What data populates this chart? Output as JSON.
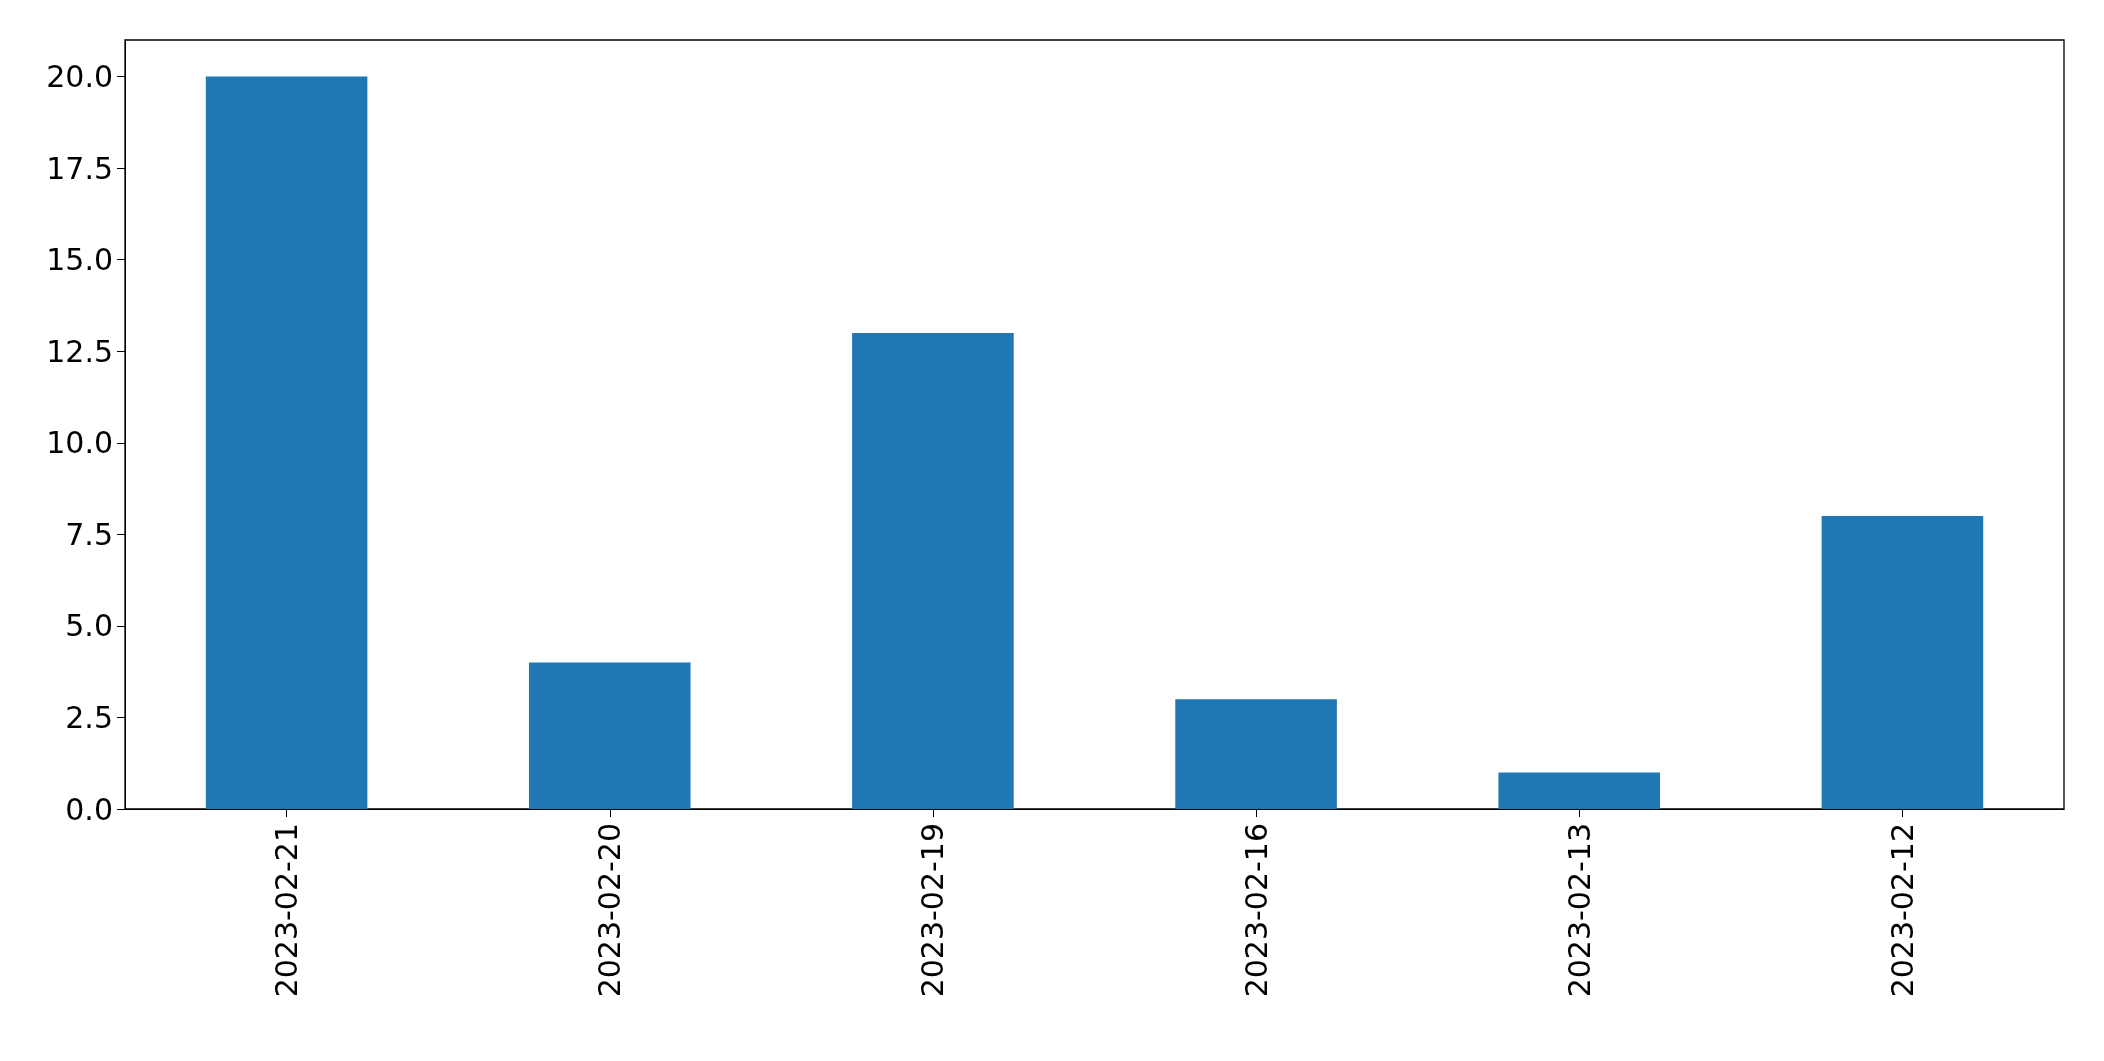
{
  "chart_data": {
    "type": "bar",
    "categories": [
      "2023-02-21",
      "2023-02-20",
      "2023-02-19",
      "2023-02-16",
      "2023-02-13",
      "2023-02-12"
    ],
    "values": [
      20,
      4,
      13,
      3,
      1,
      8
    ],
    "color": "#1f77b4",
    "ylim": [
      0,
      21
    ],
    "yticks": [
      {
        "value": 0,
        "label": "0.0"
      },
      {
        "value": 2.5,
        "label": "2.5"
      },
      {
        "value": 5,
        "label": "5.0"
      },
      {
        "value": 7.5,
        "label": "7.5"
      },
      {
        "value": 10,
        "label": "10.0"
      },
      {
        "value": 12.5,
        "label": "12.5"
      },
      {
        "value": 15,
        "label": "15.0"
      },
      {
        "value": 17.5,
        "label": "17.5"
      },
      {
        "value": 20,
        "label": "20.0"
      }
    ],
    "grid": false
  }
}
